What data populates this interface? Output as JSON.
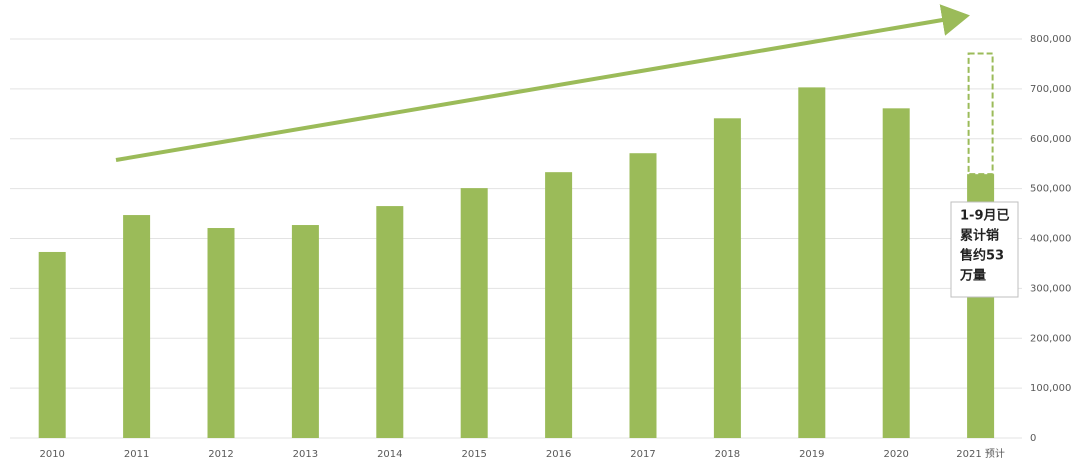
{
  "chart_data": {
    "type": "bar",
    "categories": [
      "2010",
      "2011",
      "2012",
      "2013",
      "2014",
      "2015",
      "2016",
      "2017",
      "2018",
      "2019",
      "2020",
      "2021 预计"
    ],
    "values": [
      373000,
      447000,
      421000,
      427000,
      465000,
      501000,
      533000,
      571000,
      641000,
      703000,
      661000,
      529000
    ],
    "forecast_values": [
      null,
      null,
      null,
      null,
      null,
      null,
      null,
      null,
      null,
      null,
      null,
      771000
    ],
    "color": "#9bbb59",
    "ylim": [
      0,
      800000
    ],
    "yticks": [
      0,
      {
        "value": 100000,
        "label": "100,000"
      },
      {
        "value": 200000,
        "label": "200,000"
      },
      {
        "value": 300000,
        "label": "300,000"
      },
      {
        "value": 400000,
        "label": "400,000"
      },
      {
        "value": 500000,
        "label": "500,000"
      },
      {
        "value": 600000,
        "label": "600,000"
      },
      {
        "value": 700000,
        "label": "700,000"
      },
      {
        "value": 800000,
        "label": "800,000"
      }
    ],
    "grid": true,
    "annotation": [
      "1-9月已",
      "累计销",
      "售约53",
      "万量"
    ]
  }
}
